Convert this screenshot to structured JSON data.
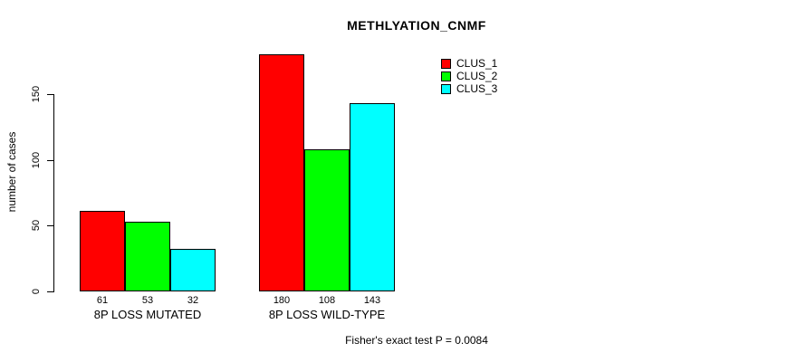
{
  "title": "METHLYATION_CNMF",
  "footer": "Fisher's exact test P = 0.0084",
  "chart_data": {
    "type": "bar",
    "title": "METHLYATION_CNMF",
    "xlabel": "",
    "ylabel": "number of cases",
    "categories": [
      "8P LOSS MUTATED",
      "8P LOSS WILD-TYPE"
    ],
    "series": [
      {
        "name": "CLUS_1",
        "color": "#ff0000",
        "values": [
          61,
          180
        ]
      },
      {
        "name": "CLUS_2",
        "color": "#00ff00",
        "values": [
          53,
          108
        ]
      },
      {
        "name": "CLUS_3",
        "color": "#00ffff",
        "values": [
          32,
          143
        ]
      }
    ],
    "yticks": [
      0,
      50,
      100,
      150
    ],
    "ylim": [
      0,
      183
    ],
    "grid": false,
    "bar_value_labels": true,
    "legend_position": "top-right-inside",
    "annotation": "Fisher's exact test P = 0.0084"
  }
}
